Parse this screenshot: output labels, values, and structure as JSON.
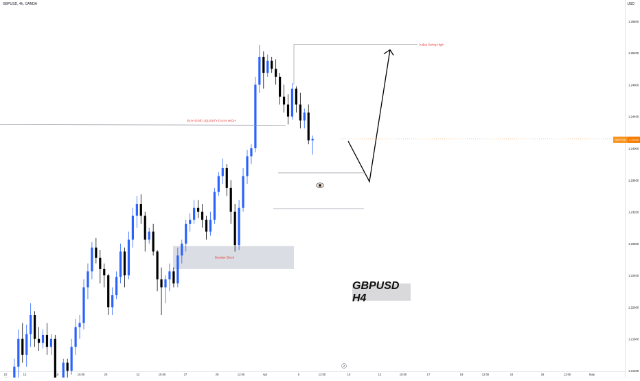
{
  "header": {
    "symbol": "GBPUSD, 4h, OANDA",
    "currency": "USD"
  },
  "price_label": {
    "symbol": "GBPUSD",
    "value": "1.24120"
  },
  "chart_title": "GBPUSD H4",
  "annotations": {
    "judas": "Judas Swing  High",
    "bsl": "BUY SIDE LIQUIDITY DAILY HIGH",
    "breaker": "Breaker Block",
    "eye_icon": "eye-icon"
  },
  "colors": {
    "up": "#2962ff",
    "down": "#000000",
    "accent": "#f57c00",
    "annotation": "#e53935",
    "zone": "#d1d4dc"
  },
  "chart_data": {
    "type": "candlestick",
    "title": "GBPUSD H4",
    "ylim": [
      1.212,
      1.2578
    ],
    "y_ticks": [
      "1.25600",
      "1.25200",
      "1.24800",
      "1.24400",
      "1.24000",
      "1.23600",
      "1.23200",
      "1.22800",
      "1.22400",
      "1.22000",
      "1.21600",
      "1.21200"
    ],
    "x_ticks": [
      "10",
      "13",
      "15",
      "15:00",
      "20",
      "22",
      "15:00",
      "27",
      "29",
      "12:00",
      "Apr",
      "5",
      "12:00",
      "10",
      "12",
      "15:00",
      "17",
      "19",
      "12:00",
      "24",
      "26",
      "12:00",
      "May"
    ],
    "levels": {
      "judas_swing_high": 1.2531,
      "bsl_daily_high": 1.2429,
      "gap_upper": 1.2369,
      "gap_lower": 1.2324,
      "breaker_block": [
        1.2248,
        1.2277
      ]
    },
    "projection": [
      [
        1.2409,
        "start"
      ],
      [
        1.2358,
        "low"
      ],
      [
        1.2524,
        "target"
      ]
    ],
    "candles": [
      [
        1.2088,
        1.211,
        1.207,
        1.21
      ],
      [
        1.21,
        1.2112,
        1.208,
        1.2085
      ],
      [
        1.2085,
        1.211,
        1.2075,
        1.21
      ],
      [
        1.21,
        1.2135,
        1.2095,
        1.2125
      ],
      [
        1.2125,
        1.2172,
        1.211,
        1.216
      ],
      [
        1.216,
        1.218,
        1.213,
        1.214
      ],
      [
        1.214,
        1.2178,
        1.2125,
        1.2166
      ],
      [
        1.2166,
        1.2205,
        1.215,
        1.219
      ],
      [
        1.219,
        1.2195,
        1.215,
        1.216
      ],
      [
        1.216,
        1.2175,
        1.2145,
        1.2155
      ],
      [
        1.2155,
        1.2172,
        1.2148,
        1.2165
      ],
      [
        1.2165,
        1.218,
        1.214,
        1.215
      ],
      [
        1.215,
        1.2166,
        1.214,
        1.216
      ],
      [
        1.216,
        1.2165,
        1.207,
        1.209
      ],
      [
        1.209,
        1.211,
        1.2085,
        1.2105
      ],
      [
        1.2105,
        1.2135,
        1.21,
        1.213
      ],
      [
        1.213,
        1.2135,
        1.211,
        1.212
      ],
      [
        1.212,
        1.216,
        1.2115,
        1.215
      ],
      [
        1.215,
        1.2185,
        1.214,
        1.2175
      ],
      [
        1.2175,
        1.219,
        1.216,
        1.218
      ],
      [
        1.218,
        1.2235,
        1.2172,
        1.2225
      ],
      [
        1.2225,
        1.2255,
        1.221,
        1.2245
      ],
      [
        1.2245,
        1.2282,
        1.2235,
        1.2275
      ],
      [
        1.2275,
        1.2287,
        1.2255,
        1.2262
      ],
      [
        1.2262,
        1.2272,
        1.223,
        1.2248
      ],
      [
        1.2248,
        1.2255,
        1.2225,
        1.224
      ],
      [
        1.224,
        1.2242,
        1.219,
        1.22
      ],
      [
        1.22,
        1.2225,
        1.219,
        1.2215
      ],
      [
        1.2215,
        1.2245,
        1.221,
        1.2238
      ],
      [
        1.2238,
        1.228,
        1.223,
        1.227
      ],
      [
        1.227,
        1.2275,
        1.2225,
        1.224
      ],
      [
        1.224,
        1.2295,
        1.2235,
        1.2285
      ],
      [
        1.2285,
        1.2325,
        1.2275,
        1.2315
      ],
      [
        1.2315,
        1.234,
        1.23,
        1.233
      ],
      [
        1.233,
        1.2342,
        1.2305,
        1.2315
      ],
      [
        1.2315,
        1.232,
        1.227,
        1.2285
      ],
      [
        1.2285,
        1.23,
        1.228,
        1.2295
      ],
      [
        1.2295,
        1.2305,
        1.2265,
        1.227
      ],
      [
        1.227,
        1.2272,
        1.222,
        1.2235
      ],
      [
        1.2235,
        1.225,
        1.219,
        1.2225
      ],
      [
        1.2225,
        1.224,
        1.2205,
        1.2235
      ],
      [
        1.2235,
        1.2255,
        1.222,
        1.2245
      ],
      [
        1.2245,
        1.225,
        1.2225,
        1.223
      ],
      [
        1.223,
        1.2275,
        1.2225,
        1.2265
      ],
      [
        1.2265,
        1.2285,
        1.2255,
        1.228
      ],
      [
        1.228,
        1.231,
        1.227,
        1.2305
      ],
      [
        1.2305,
        1.2318,
        1.2295,
        1.231
      ],
      [
        1.231,
        1.2335,
        1.2305,
        1.2325
      ],
      [
        1.2325,
        1.2335,
        1.2312,
        1.232
      ],
      [
        1.232,
        1.233,
        1.23,
        1.231
      ],
      [
        1.231,
        1.2315,
        1.2285,
        1.2295
      ],
      [
        1.2295,
        1.232,
        1.229,
        1.231
      ],
      [
        1.231,
        1.235,
        1.2305,
        1.2345
      ],
      [
        1.2345,
        1.237,
        1.234,
        1.2365
      ],
      [
        1.2365,
        1.2387,
        1.2355,
        1.2375
      ],
      [
        1.2375,
        1.238,
        1.234,
        1.235
      ],
      [
        1.235,
        1.236,
        1.2305,
        1.232
      ],
      [
        1.232,
        1.233,
        1.227,
        1.2278
      ],
      [
        1.2278,
        1.2335,
        1.2272,
        1.2325
      ],
      [
        1.2325,
        1.2375,
        1.232,
        1.2365
      ],
      [
        1.2365,
        1.2398,
        1.2355,
        1.239
      ],
      [
        1.239,
        1.2405,
        1.238,
        1.24
      ],
      [
        1.24,
        1.249,
        1.2395,
        1.248
      ],
      [
        1.248,
        1.253,
        1.247,
        1.2515
      ],
      [
        1.2515,
        1.2522,
        1.2475,
        1.2495
      ],
      [
        1.2495,
        1.2518,
        1.249,
        1.251
      ],
      [
        1.251,
        1.2515,
        1.2495,
        1.25
      ],
      [
        1.25,
        1.2512,
        1.248,
        1.249
      ],
      [
        1.249,
        1.2495,
        1.2455,
        1.2465
      ],
      [
        1.2465,
        1.248,
        1.2445,
        1.2455
      ],
      [
        1.2455,
        1.2468,
        1.243,
        1.244
      ],
      [
        1.244,
        1.2482,
        1.2436,
        1.2475
      ],
      [
        1.2475,
        1.2478,
        1.2445,
        1.2455
      ],
      [
        1.2455,
        1.247,
        1.2425,
        1.2435
      ],
      [
        1.2435,
        1.245,
        1.2425,
        1.2445
      ],
      [
        1.2445,
        1.2455,
        1.2405,
        1.241
      ],
      [
        1.241,
        1.2416,
        1.2392,
        1.2412
      ]
    ]
  }
}
